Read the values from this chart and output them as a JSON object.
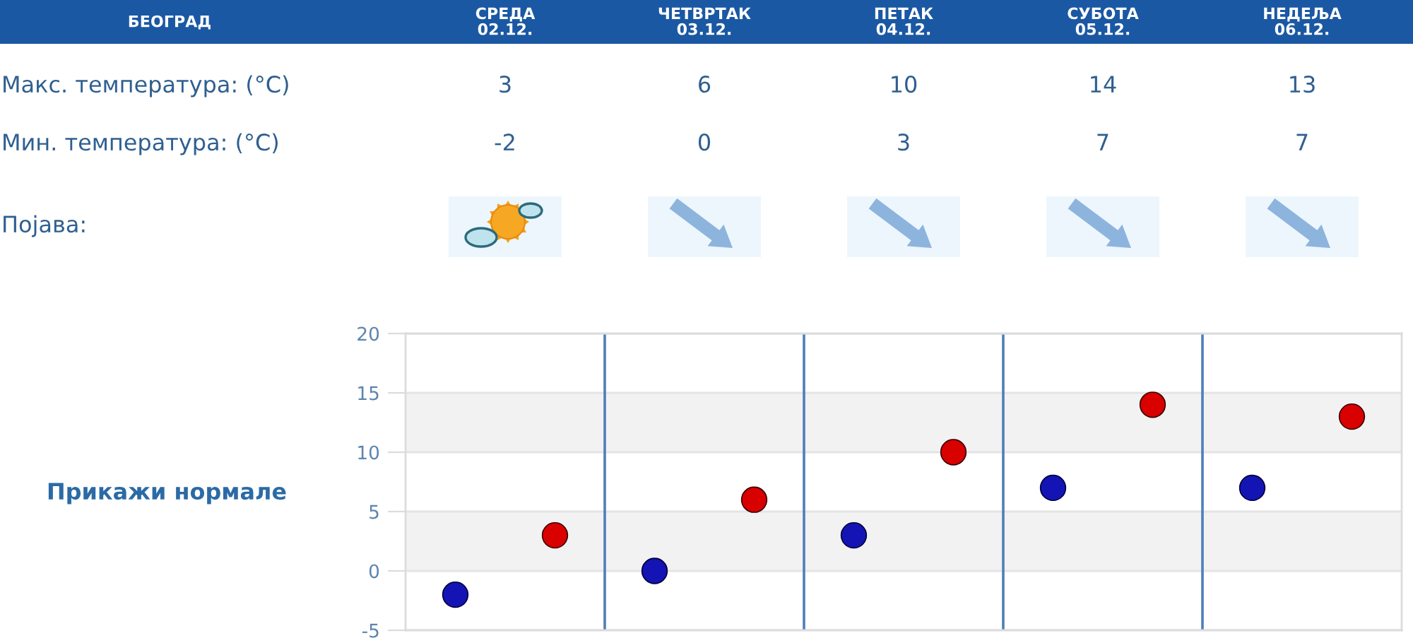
{
  "chart_data": {
    "type": "scatter",
    "title": "БЕОГРАД",
    "categories": [
      null,
      null,
      null,
      null,
      null
    ],
    "series": [
      {
        "color": "#d90000",
        "values": [
          3,
          6,
          10,
          14,
          13
        ]
      },
      {
        "color": "#1414b4",
        "values": [
          -2,
          0,
          3,
          7,
          7
        ]
      }
    ],
    "data_labels": true,
    "marker": "circle",
    "grid": "y",
    "legend": false,
    "ylim": [
      -5,
      20
    ],
    "yticks": [
      -5,
      0,
      5,
      10,
      15,
      20
    ],
    "bands": [
      {
        "axis": "y",
        "from": 10,
        "to": 15,
        "color": "#f2f2f2"
      },
      {
        "axis": "y",
        "from": 0,
        "to": 5,
        "color": "#f2f2f2"
      }
    ],
    "annotations": [
      "СРЕДА\n02.12.",
      "ЧЕТВРТАК\n03.12.",
      "ПЕТАК\n04.12.",
      "СУБОТА\n05.12.",
      "НЕДЕЉА\n06.12.",
      "Макс. температура: (°C)",
      "Мин. температура: (°C)",
      "Појава:",
      "Прикажи нормале"
    ]
  }
}
